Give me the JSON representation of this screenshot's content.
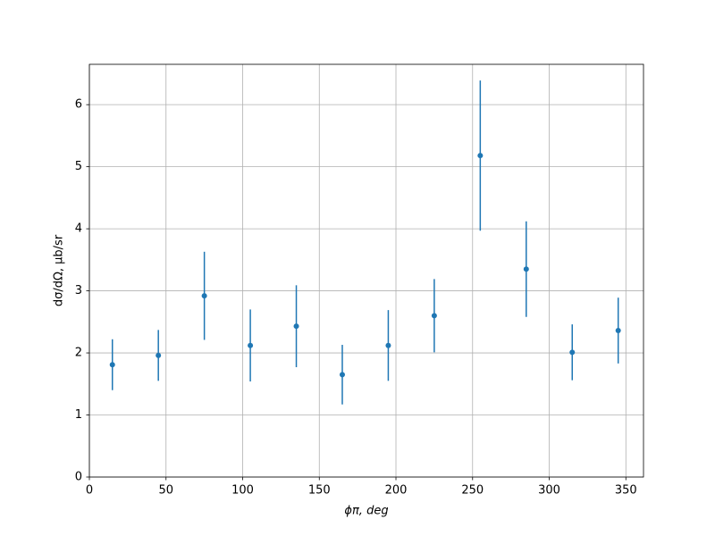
{
  "chart_data": {
    "type": "errorbar",
    "xlabel": "ϕπ, deg",
    "ylabel": "dσ/dΩ, μb/sr",
    "x": [
      15,
      45,
      75,
      105,
      135,
      165,
      195,
      225,
      255,
      285,
      315,
      345
    ],
    "series": [
      {
        "color": "#1f77b4",
        "values": [
          1.81,
          1.96,
          2.92,
          2.12,
          2.43,
          1.65,
          2.12,
          2.6,
          5.18,
          3.35,
          2.01,
          2.36
        ],
        "errors": [
          0.41,
          0.41,
          0.71,
          0.58,
          0.66,
          0.48,
          0.57,
          0.59,
          1.21,
          0.77,
          0.45,
          0.53
        ]
      }
    ],
    "xlim": [
      0,
      361.5
    ],
    "ylim": [
      0,
      6.65
    ],
    "xticks": [
      0,
      50,
      100,
      150,
      200,
      250,
      300,
      350
    ],
    "yticks": [
      0,
      1,
      2,
      3,
      4,
      5,
      6
    ],
    "grid": true
  }
}
